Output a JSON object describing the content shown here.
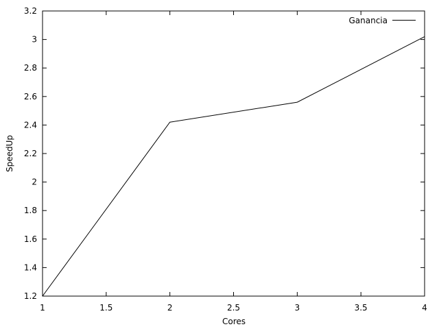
{
  "chart_data": {
    "type": "line",
    "title": "",
    "xlabel": "Cores",
    "ylabel": "SpeedUp",
    "xlim": [
      1,
      4
    ],
    "ylim": [
      1.2,
      3.2
    ],
    "xticks": [
      1,
      1.5,
      2,
      2.5,
      3,
      3.5,
      4
    ],
    "yticks": [
      1.2,
      1.4,
      1.6,
      1.8,
      2,
      2.2,
      2.4,
      2.6,
      2.8,
      3,
      3.2
    ],
    "xtick_labels": [
      "1",
      "1.5",
      "2",
      "2.5",
      "3",
      "3.5",
      "4"
    ],
    "ytick_labels": [
      "1.2",
      "1.4",
      "1.6",
      "1.8",
      "2",
      "2.2",
      "2.4",
      "2.6",
      "2.8",
      "3",
      "3.2"
    ],
    "grid": false,
    "legend_position": "top-right",
    "series": [
      {
        "name": "Ganancia",
        "color": "#000000",
        "x": [
          1,
          2,
          3,
          4
        ],
        "y": [
          1.2,
          2.42,
          2.56,
          3.02
        ]
      }
    ]
  }
}
